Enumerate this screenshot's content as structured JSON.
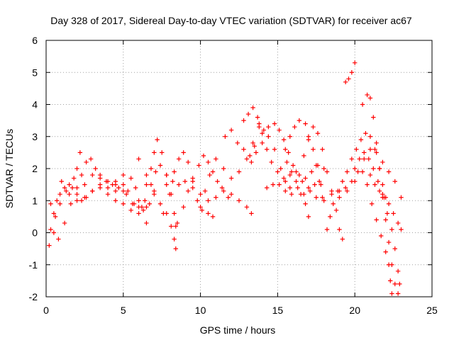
{
  "chart_data": {
    "type": "scatter",
    "title": "Day 328 of 2017, Sidereal Day-to-day VTEC variation (SDTVAR) for receiver ac67",
    "xlabel": "GPS time / hours",
    "ylabel": "SDTVAR / TECUs",
    "xlim": [
      0,
      25
    ],
    "ylim": [
      -2,
      6
    ],
    "xticks": [
      "0",
      "5",
      "10",
      "15",
      "20",
      "25"
    ],
    "yticks": [
      "-2",
      "-1",
      "0",
      "1",
      "2",
      "3",
      "4",
      "5",
      "6"
    ],
    "grid": true,
    "marker": "plus",
    "color": "#ff0000",
    "series": [
      {
        "name": "s1",
        "points": [
          [
            0.2,
            -0.4
          ],
          [
            0.3,
            0.1
          ],
          [
            0.5,
            0.6
          ],
          [
            0.7,
            1.0
          ],
          [
            0.9,
            1.2
          ],
          [
            1.2,
            1.4
          ],
          [
            1.5,
            1.5
          ],
          [
            1.8,
            1.7
          ],
          [
            2.0,
            2.0
          ],
          [
            2.2,
            2.5
          ]
        ]
      },
      {
        "name": "s2",
        "points": [
          [
            0.3,
            0.9
          ],
          [
            0.6,
            0.5
          ],
          [
            0.9,
            0.9
          ],
          [
            1.3,
            1.3
          ],
          [
            1.7,
            1.4
          ],
          [
            2.0,
            1.2
          ],
          [
            2.3,
            1.0
          ],
          [
            2.6,
            1.1
          ],
          [
            3.0,
            1.3
          ],
          [
            3.5,
            1.5
          ],
          [
            4.0,
            1.6
          ],
          [
            4.5,
            1.5
          ],
          [
            5.0,
            1.3
          ]
        ]
      },
      {
        "name": "s3",
        "points": [
          [
            0.5,
            0.0
          ],
          [
            0.8,
            -0.2
          ],
          [
            1.2,
            0.3
          ],
          [
            1.6,
            0.9
          ],
          [
            2.0,
            1.4
          ],
          [
            2.3,
            1.8
          ],
          [
            2.6,
            2.2
          ],
          [
            2.9,
            2.3
          ],
          [
            3.2,
            2.0
          ],
          [
            3.5,
            1.8
          ],
          [
            3.9,
            1.6
          ],
          [
            4.3,
            1.5
          ],
          [
            4.7,
            1.4
          ],
          [
            5.2,
            1.2
          ],
          [
            5.7,
            0.9
          ],
          [
            6.2,
            0.8
          ],
          [
            6.7,
            0.9
          ],
          [
            7.0,
            1.2
          ]
        ]
      },
      {
        "name": "s4",
        "points": [
          [
            1.0,
            1.6
          ],
          [
            1.5,
            1.2
          ],
          [
            2.0,
            1.0
          ],
          [
            2.5,
            1.1
          ],
          [
            3.0,
            1.3
          ],
          [
            3.5,
            1.4
          ],
          [
            4.0,
            1.2
          ],
          [
            4.5,
            1.0
          ],
          [
            5.0,
            0.9
          ],
          [
            5.5,
            0.7
          ],
          [
            6.0,
            0.6
          ],
          [
            6.5,
            0.8
          ]
        ]
      },
      {
        "name": "s5",
        "points": [
          [
            2.5,
            1.5
          ],
          [
            3.0,
            1.8
          ],
          [
            3.5,
            1.7
          ],
          [
            4.0,
            1.4
          ],
          [
            4.5,
            1.3
          ],
          [
            5.0,
            1.5
          ],
          [
            5.5,
            1.7
          ],
          [
            5.8,
            1.4
          ],
          [
            6.0,
            1.0
          ],
          [
            6.3,
            0.7
          ],
          [
            6.5,
            0.3
          ]
        ]
      },
      {
        "name": "s6",
        "points": [
          [
            4.5,
            1.6
          ],
          [
            5.0,
            1.8
          ],
          [
            5.3,
            1.3
          ],
          [
            5.6,
            0.9
          ],
          [
            6.0,
            0.8
          ],
          [
            6.4,
            1.0
          ],
          [
            6.8,
            1.5
          ],
          [
            7.1,
            1.9
          ],
          [
            7.4,
            2.1
          ],
          [
            7.8,
            1.8
          ]
        ]
      },
      {
        "name": "s7",
        "points": [
          [
            6.5,
            1.5
          ],
          [
            6.8,
            2.0
          ],
          [
            7.0,
            2.5
          ],
          [
            7.2,
            2.9
          ],
          [
            7.5,
            2.5
          ],
          [
            7.8,
            1.8
          ],
          [
            8.1,
            1.2
          ],
          [
            8.3,
            0.6
          ],
          [
            8.4,
            0.2
          ]
        ]
      },
      {
        "name": "s8",
        "points": [
          [
            6.0,
            2.3
          ],
          [
            6.5,
            1.8
          ],
          [
            7.0,
            1.3
          ],
          [
            7.4,
            0.9
          ],
          [
            7.8,
            0.6
          ],
          [
            8.1,
            0.2
          ],
          [
            8.3,
            -0.2
          ],
          [
            8.4,
            -0.5
          ]
        ]
      },
      {
        "name": "s9",
        "points": [
          [
            7.6,
            0.6
          ],
          [
            8.0,
            1.2
          ],
          [
            8.3,
            1.9
          ],
          [
            8.6,
            2.3
          ],
          [
            8.9,
            2.5
          ],
          [
            9.2,
            2.2
          ],
          [
            9.5,
            1.6
          ],
          [
            9.8,
            1.0
          ],
          [
            10.1,
            0.7
          ],
          [
            10.5,
            0.6
          ],
          [
            10.8,
            0.5
          ]
        ]
      },
      {
        "name": "s10",
        "points": [
          [
            8.5,
            0.3
          ],
          [
            8.9,
            0.8
          ],
          [
            9.2,
            1.3
          ],
          [
            9.5,
            1.7
          ],
          [
            9.9,
            2.1
          ],
          [
            10.2,
            2.4
          ],
          [
            10.5,
            2.2
          ],
          [
            10.8,
            1.9
          ],
          [
            11.1,
            1.6
          ],
          [
            11.4,
            1.4
          ],
          [
            11.8,
            1.1
          ]
        ]
      },
      {
        "name": "s11",
        "points": [
          [
            7.8,
            1.5
          ],
          [
            8.2,
            1.6
          ],
          [
            8.6,
            1.5
          ],
          [
            9.0,
            1.6
          ],
          [
            9.5,
            1.4
          ],
          [
            10.0,
            1.2
          ],
          [
            10.5,
            1.0
          ],
          [
            11.0,
            1.1
          ],
          [
            11.5,
            1.3
          ],
          [
            12.0,
            1.2
          ],
          [
            12.5,
            1.0
          ],
          [
            13.0,
            0.8
          ],
          [
            13.3,
            0.6
          ]
        ]
      },
      {
        "name": "s12",
        "points": [
          [
            10.0,
            0.8
          ],
          [
            10.3,
            1.3
          ],
          [
            10.6,
            1.8
          ],
          [
            11.0,
            2.3
          ],
          [
            11.5,
            2.0
          ],
          [
            12.0,
            1.7
          ],
          [
            12.5,
            1.9
          ],
          [
            13.0,
            2.3
          ],
          [
            13.4,
            2.8
          ],
          [
            13.8,
            3.3
          ]
        ]
      },
      {
        "name": "s13",
        "points": [
          [
            11.6,
            3.0
          ],
          [
            12.0,
            3.2
          ],
          [
            12.4,
            2.8
          ],
          [
            12.8,
            2.6
          ],
          [
            13.2,
            2.4
          ],
          [
            13.5,
            2.7
          ],
          [
            13.8,
            3.4
          ],
          [
            14.1,
            3.2
          ],
          [
            14.4,
            3.0
          ],
          [
            14.8,
            2.6
          ],
          [
            15.2,
            2.0
          ],
          [
            15.5,
            1.6
          ],
          [
            15.8,
            1.4
          ]
        ]
      },
      {
        "name": "s14",
        "points": [
          [
            12.8,
            3.5
          ],
          [
            13.1,
            3.7
          ],
          [
            13.4,
            3.9
          ],
          [
            13.7,
            3.6
          ],
          [
            14.0,
            3.1
          ],
          [
            14.3,
            2.6
          ],
          [
            14.6,
            2.2
          ],
          [
            15.0,
            1.9
          ],
          [
            15.4,
            1.7
          ],
          [
            15.8,
            1.8
          ],
          [
            16.2,
            1.9
          ],
          [
            16.6,
            1.6
          ],
          [
            17.0,
            1.4
          ],
          [
            17.4,
            1.5
          ],
          [
            17.8,
            1.5
          ]
        ]
      },
      {
        "name": "s15",
        "points": [
          [
            13.3,
            2.2
          ],
          [
            13.6,
            2.5
          ],
          [
            14.0,
            2.8
          ],
          [
            14.4,
            3.3
          ],
          [
            14.8,
            3.4
          ],
          [
            15.1,
            3.2
          ],
          [
            15.4,
            2.9
          ],
          [
            15.7,
            2.5
          ],
          [
            16.0,
            2.1
          ],
          [
            16.4,
            1.8
          ],
          [
            16.8,
            1.7
          ],
          [
            17.2,
            1.9
          ],
          [
            17.6,
            2.1
          ],
          [
            18.0,
            2.0
          ]
        ]
      },
      {
        "name": "s16",
        "points": [
          [
            14.3,
            1.4
          ],
          [
            14.7,
            1.5
          ],
          [
            15.1,
            1.5
          ],
          [
            15.5,
            1.3
          ],
          [
            15.9,
            1.2
          ],
          [
            16.3,
            1.4
          ],
          [
            16.7,
            1.2
          ],
          [
            17.1,
            1.3
          ],
          [
            17.5,
            1.1
          ],
          [
            18.0,
            1.0
          ],
          [
            18.5,
            1.2
          ],
          [
            19.0,
            1.1
          ],
          [
            19.5,
            1.3
          ],
          [
            20.0,
            1.6
          ],
          [
            20.5,
            1.9
          ]
        ]
      },
      {
        "name": "s17",
        "points": [
          [
            15.5,
            2.6
          ],
          [
            15.8,
            3.0
          ],
          [
            16.1,
            3.3
          ],
          [
            16.4,
            3.5
          ],
          [
            16.8,
            3.4
          ],
          [
            17.0,
            3.0
          ],
          [
            17.3,
            2.6
          ],
          [
            17.5,
            2.1
          ],
          [
            17.7,
            1.6
          ],
          [
            17.9,
            1.1
          ]
        ]
      },
      {
        "name": "s18",
        "points": [
          [
            15.6,
            2.2
          ],
          [
            15.9,
            1.9
          ],
          [
            16.2,
            1.6
          ],
          [
            16.5,
            1.2
          ],
          [
            16.8,
            0.9
          ],
          [
            17.0,
            0.5
          ]
        ]
      },
      {
        "name": "s19",
        "points": [
          [
            16.7,
            2.4
          ],
          [
            17.0,
            2.9
          ],
          [
            17.3,
            3.3
          ],
          [
            17.6,
            3.1
          ],
          [
            17.9,
            2.6
          ],
          [
            18.2,
            1.9
          ],
          [
            18.5,
            1.3
          ],
          [
            18.8,
            0.7
          ],
          [
            19.0,
            0.1
          ],
          [
            19.2,
            -0.2
          ]
        ]
      },
      {
        "name": "s20",
        "points": [
          [
            18.2,
            0.1
          ],
          [
            18.4,
            0.5
          ],
          [
            18.6,
            0.9
          ],
          [
            18.9,
            1.3
          ],
          [
            19.2,
            1.6
          ],
          [
            19.5,
            1.9
          ],
          [
            19.8,
            2.3
          ],
          [
            20.1,
            2.6
          ],
          [
            20.4,
            2.9
          ],
          [
            20.7,
            3.1
          ],
          [
            21.0,
            3.0
          ],
          [
            21.3,
            2.6
          ],
          [
            21.6,
            2.0
          ],
          [
            21.8,
            1.5
          ],
          [
            22.0,
            1.1
          ]
        ]
      },
      {
        "name": "s21",
        "points": [
          [
            19.0,
            1.3
          ],
          [
            19.4,
            1.4
          ],
          [
            19.8,
            1.6
          ],
          [
            20.2,
            1.9
          ],
          [
            20.6,
            2.3
          ],
          [
            21.0,
            2.6
          ],
          [
            21.4,
            2.5
          ],
          [
            21.8,
            2.2
          ],
          [
            22.2,
            1.9
          ],
          [
            22.6,
            1.6
          ],
          [
            23.0,
            1.1
          ]
        ]
      },
      {
        "name": "s22",
        "points": [
          [
            19.4,
            4.7
          ],
          [
            19.6,
            4.8
          ],
          [
            19.8,
            5.0
          ],
          [
            20.0,
            5.3
          ]
        ]
      },
      {
        "name": "s23",
        "points": [
          [
            20.5,
            4.0
          ],
          [
            20.8,
            4.3
          ],
          [
            21.0,
            4.2
          ],
          [
            21.2,
            3.6
          ],
          [
            21.4,
            2.8
          ],
          [
            21.6,
            2.0
          ],
          [
            21.8,
            1.2
          ],
          [
            22.0,
            0.4
          ],
          [
            22.2,
            -0.3
          ],
          [
            22.4,
            -1.0
          ],
          [
            22.6,
            -1.6
          ],
          [
            22.8,
            -1.9
          ]
        ]
      },
      {
        "name": "s24",
        "points": [
          [
            20.0,
            2.0
          ],
          [
            20.3,
            2.3
          ],
          [
            20.6,
            2.5
          ],
          [
            20.9,
            2.3
          ],
          [
            21.2,
            2.0
          ],
          [
            21.5,
            1.6
          ],
          [
            21.8,
            1.1
          ],
          [
            22.1,
            0.6
          ],
          [
            22.4,
            0.1
          ],
          [
            22.6,
            -0.5
          ],
          [
            22.8,
            -1.2
          ],
          [
            22.9,
            -1.6
          ]
        ]
      },
      {
        "name": "s25",
        "points": [
          [
            20.8,
            1.5
          ],
          [
            21.1,
            0.9
          ],
          [
            21.4,
            0.4
          ],
          [
            21.7,
            -0.1
          ],
          [
            22.0,
            -0.6
          ],
          [
            22.2,
            -1.0
          ],
          [
            22.3,
            -1.5
          ],
          [
            22.4,
            -1.9
          ]
        ]
      },
      {
        "name": "s26",
        "points": [
          [
            21.0,
            1.8
          ],
          [
            21.3,
            1.5
          ],
          [
            21.6,
            1.3
          ],
          [
            21.9,
            1.1
          ],
          [
            22.2,
            0.9
          ],
          [
            22.5,
            0.6
          ],
          [
            22.8,
            0.3
          ],
          [
            23.0,
            0.1
          ]
        ]
      }
    ]
  }
}
